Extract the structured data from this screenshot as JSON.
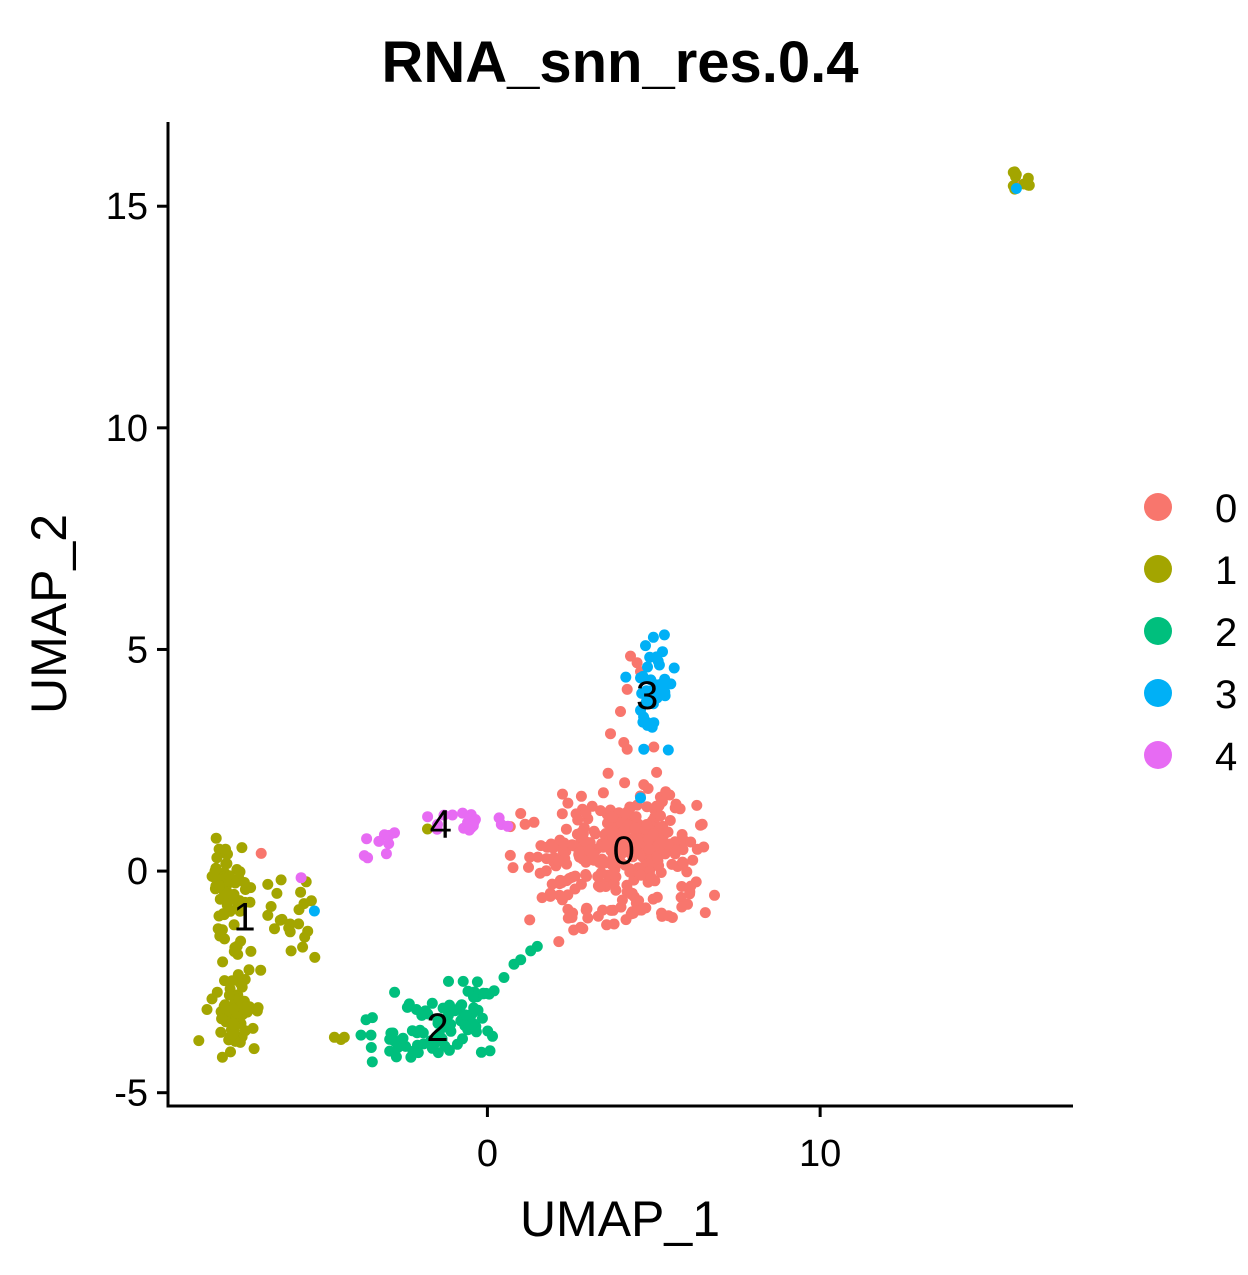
{
  "chart_data": {
    "type": "scatter",
    "title": "RNA_snn_res.0.4",
    "xlabel": "UMAP_1",
    "ylabel": "UMAP_2",
    "xlim": [
      -9.6,
      17.6
    ],
    "ylim": [
      -5.3,
      16.9
    ],
    "xticks": [
      0,
      10
    ],
    "xtick_labels": [
      "0",
      "10"
    ],
    "yticks": [
      -5,
      0,
      5,
      10,
      15
    ],
    "ytick_labels": [
      "-5",
      "0",
      "5",
      "10",
      "15"
    ],
    "grid": false,
    "legend_position": "right",
    "series": [
      {
        "name": "0",
        "color": "#F8766D",
        "label_pos": [
          4.1,
          0.4
        ],
        "regions": [
          {
            "cx": 4.2,
            "cy": 0.4,
            "sx": 1.05,
            "sy": 0.65,
            "n": 250
          },
          {
            "cx": 2.2,
            "cy": 0.5,
            "sx": 0.65,
            "sy": 0.5,
            "n": 40
          },
          {
            "cx": 4.8,
            "cy": 1.2,
            "sx": 0.55,
            "sy": 0.35,
            "n": 30
          },
          {
            "cx": 4.8,
            "cy": -0.8,
            "sx": 0.8,
            "sy": 0.2,
            "n": 18
          },
          {
            "cx": 2.4,
            "cy": -0.9,
            "sx": 0.5,
            "sy": 0.3,
            "n": 12
          }
        ],
        "points": [
          [
            4.3,
            4.85
          ],
          [
            4.5,
            4.7
          ],
          [
            4.6,
            4.5
          ],
          [
            4.2,
            4.1
          ],
          [
            4.0,
            3.6
          ],
          [
            3.7,
            3.1
          ],
          [
            4.1,
            2.9
          ],
          [
            4.2,
            2.75
          ],
          [
            5.0,
            2.8
          ],
          [
            4.7,
            1.95
          ],
          [
            1.0,
            1.3
          ],
          [
            1.4,
            1.1
          ],
          [
            -6.8,
            0.4
          ],
          [
            15.9,
            15.5
          ]
        ]
      },
      {
        "name": "1",
        "color": "#A3A500",
        "label_pos": [
          -7.3,
          -1.1
        ],
        "regions": [
          {
            "cx": -7.8,
            "cy": -0.4,
            "sx": 0.3,
            "sy": 0.5,
            "n": 60
          },
          {
            "cx": -7.6,
            "cy": -3.1,
            "sx": 0.35,
            "sy": 0.5,
            "n": 65
          },
          {
            "cx": -5.8,
            "cy": -1.1,
            "sx": 0.3,
            "sy": 0.5,
            "n": 16
          },
          {
            "cx": -7.5,
            "cy": -1.6,
            "sx": 0.2,
            "sy": 0.3,
            "n": 8
          },
          {
            "cx": 16.0,
            "cy": 15.6,
            "sx": 0.18,
            "sy": 0.14,
            "n": 10
          }
        ],
        "points": [
          [
            -6.6,
            -0.3
          ],
          [
            -6.5,
            -0.8
          ],
          [
            -6.4,
            -1.3
          ],
          [
            -6.6,
            -1.0
          ],
          [
            -5.9,
            -1.8
          ],
          [
            -6.2,
            -0.2
          ],
          [
            -4.3,
            -3.75
          ],
          [
            -4.4,
            -3.8
          ],
          [
            -4.6,
            -3.75
          ],
          [
            -1.8,
            0.95
          ]
        ]
      },
      {
        "name": "2",
        "color": "#00BF7D",
        "label_pos": [
          -1.5,
          -3.6
        ],
        "regions": [
          {
            "cx": -1.6,
            "cy": -3.6,
            "sx": 0.9,
            "sy": 0.35,
            "n": 55
          },
          {
            "cx": -0.5,
            "cy": -2.95,
            "sx": 0.55,
            "sy": 0.35,
            "n": 25
          },
          {
            "cx": -2.8,
            "cy": -3.85,
            "sx": 0.35,
            "sy": 0.12,
            "n": 8
          }
        ],
        "points": [
          [
            0.2,
            -2.7
          ],
          [
            0.5,
            -2.4
          ],
          [
            0.8,
            -2.1
          ],
          [
            1.0,
            -2.0
          ],
          [
            1.3,
            -1.8
          ],
          [
            1.5,
            -1.7
          ],
          [
            -0.3,
            -2.5
          ],
          [
            -3.5,
            -3.7
          ],
          [
            -3.8,
            -3.7
          ],
          [
            -2.3,
            -4.2
          ]
        ]
      },
      {
        "name": "3",
        "color": "#00B0F6",
        "label_pos": [
          4.8,
          3.9
        ],
        "regions": [
          {
            "cx": 5.0,
            "cy": 4.2,
            "sx": 0.25,
            "sy": 0.45,
            "n": 32
          },
          {
            "cx": 4.8,
            "cy": 3.35,
            "sx": 0.15,
            "sy": 0.2,
            "n": 6
          }
        ],
        "points": [
          [
            4.7,
            2.75
          ],
          [
            4.6,
            1.65
          ],
          [
            -5.2,
            -0.9
          ],
          [
            15.9,
            15.4
          ]
        ]
      },
      {
        "name": "4",
        "color": "#E76BF3",
        "label_pos": [
          -1.4,
          1.0
        ],
        "regions": [
          {
            "cx": -0.6,
            "cy": 1.1,
            "sx": 0.6,
            "sy": 0.1,
            "n": 16
          },
          {
            "cx": -3.2,
            "cy": 0.7,
            "sx": 0.25,
            "sy": 0.1,
            "n": 7
          }
        ],
        "points": [
          [
            -3.6,
            0.3
          ],
          [
            -3.7,
            0.35
          ],
          [
            -1.5,
            1.05
          ],
          [
            -5.6,
            -0.15
          ]
        ]
      }
    ]
  }
}
